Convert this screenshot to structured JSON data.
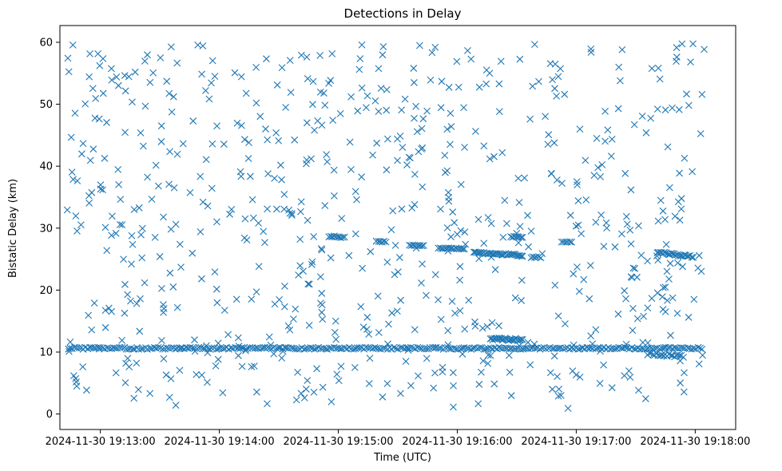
{
  "chart_data": {
    "type": "scatter",
    "title": "Detections in Delay",
    "xlabel": "Time (UTC)",
    "ylabel": "Bistatic Delay (km)",
    "marker": "x",
    "color": "#1f77b4",
    "x_unit": "minutes since 19:13:00",
    "xlim": [
      -0.34,
      5.34
    ],
    "ylim": [
      -2.5,
      62.7
    ],
    "x_ticks": [
      {
        "value": 0,
        "label": "2024-11-30 19:13:00"
      },
      {
        "value": 1,
        "label": "2024-11-30 19:14:00"
      },
      {
        "value": 2,
        "label": "2024-11-30 19:15:00"
      },
      {
        "value": 3,
        "label": "2024-11-30 19:16:00"
      },
      {
        "value": 4,
        "label": "2024-11-30 19:17:00"
      },
      {
        "value": 5,
        "label": "2024-11-30 19:18:00"
      }
    ],
    "y_ticks": [
      {
        "value": 0,
        "label": "0"
      },
      {
        "value": 10,
        "label": "10"
      },
      {
        "value": 20,
        "label": "20"
      },
      {
        "value": 30,
        "label": "30"
      },
      {
        "value": 40,
        "label": "40"
      },
      {
        "value": 50,
        "label": "50"
      },
      {
        "value": 60,
        "label": "60"
      }
    ],
    "x_range": [
      -0.28,
      5.08
    ],
    "num_scatter_points": 700,
    "num_points_approx": 1100,
    "tracks": [
      {
        "name": "main-10.6km",
        "x_start": -0.27,
        "x_end": 5.06,
        "y_start": 10.6,
        "y_end": 10.6,
        "step": 0.018,
        "noise": 0.15
      },
      {
        "name": "track-28.5",
        "x_start": 1.92,
        "x_end": 2.05,
        "y_start": 28.7,
        "y_end": 28.5,
        "step": 0.015,
        "noise": 0.1
      },
      {
        "name": "track-28",
        "x_start": 2.32,
        "x_end": 2.4,
        "y_start": 27.9,
        "y_end": 27.8,
        "step": 0.015,
        "noise": 0.1
      },
      {
        "name": "track-27.3",
        "x_start": 2.6,
        "x_end": 2.72,
        "y_start": 27.3,
        "y_end": 27.2,
        "step": 0.015,
        "noise": 0.1
      },
      {
        "name": "track-26.7",
        "x_start": 2.84,
        "x_end": 3.06,
        "y_start": 26.8,
        "y_end": 26.6,
        "step": 0.015,
        "noise": 0.1
      },
      {
        "name": "track-26",
        "x_start": 3.14,
        "x_end": 3.55,
        "y_start": 26.1,
        "y_end": 25.6,
        "step": 0.012,
        "noise": 0.15
      },
      {
        "name": "track-25.3",
        "x_start": 3.62,
        "x_end": 3.7,
        "y_start": 25.3,
        "y_end": 25.3,
        "step": 0.015,
        "noise": 0.1
      },
      {
        "name": "track-28.6",
        "x_start": 3.45,
        "x_end": 3.55,
        "y_start": 28.6,
        "y_end": 28.6,
        "step": 0.015,
        "noise": 0.1
      },
      {
        "name": "track-27.8",
        "x_start": 3.88,
        "x_end": 3.96,
        "y_start": 27.8,
        "y_end": 27.8,
        "step": 0.015,
        "noise": 0.1
      },
      {
        "name": "track-25.7",
        "x_start": 4.68,
        "x_end": 4.98,
        "y_start": 26.1,
        "y_end": 25.4,
        "step": 0.012,
        "noise": 0.15
      },
      {
        "name": "track-12",
        "x_start": 3.28,
        "x_end": 3.55,
        "y_start": 12.1,
        "y_end": 12.0,
        "step": 0.01,
        "noise": 0.2
      },
      {
        "name": "track-9.5",
        "x_start": 4.6,
        "x_end": 4.9,
        "y_start": 9.7,
        "y_end": 9.3,
        "step": 0.015,
        "noise": 0.2
      }
    ]
  }
}
